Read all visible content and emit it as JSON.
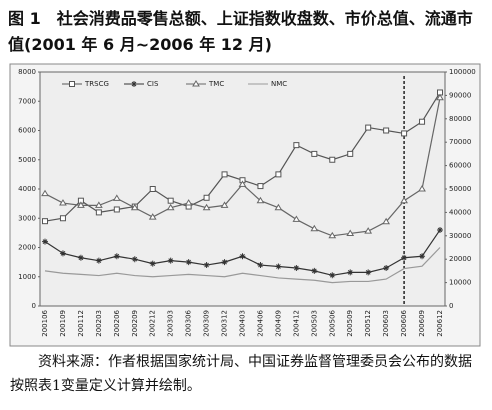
{
  "chart_data": {
    "type": "line",
    "title": "图 1　社会消费品零售总额、上证指数收盘数、市价总值、流通市值(2001 年 6 月~2006 年 12 月)",
    "caption": "资料来源：作者根据国家统计局、中国证券监督管理委员会公布的数据按照表1变量定义计算并绘制。",
    "categories": [
      "200106",
      "200109",
      "200112",
      "200203",
      "200206",
      "200209",
      "200212",
      "200303",
      "200306",
      "200309",
      "200312",
      "200403",
      "200406",
      "200409",
      "200412",
      "200503",
      "200506",
      "200509",
      "200512",
      "200603",
      "200606",
      "200609",
      "200612"
    ],
    "series": [
      {
        "name": "TRSCG",
        "color": "#555",
        "marker": "square",
        "axis": "y",
        "values": [
          2900,
          3000,
          3600,
          3200,
          3300,
          3400,
          4000,
          3600,
          3400,
          3700,
          4500,
          4300,
          4100,
          4500,
          5500,
          5200,
          5000,
          5200,
          6100,
          6000,
          5900,
          6300,
          7300
        ]
      },
      {
        "name": "CIS",
        "color": "#333",
        "marker": "star",
        "axis": "y",
        "values": [
          2200,
          1800,
          1650,
          1550,
          1700,
          1600,
          1450,
          1550,
          1500,
          1400,
          1500,
          1700,
          1400,
          1350,
          1300,
          1200,
          1050,
          1150,
          1150,
          1300,
          1650,
          1700,
          2600
        ]
      },
      {
        "name": "TMC",
        "color": "#666",
        "marker": "triangle",
        "axis": "y2",
        "values": [
          48000,
          44000,
          43000,
          43000,
          46000,
          42000,
          38000,
          42000,
          44000,
          42000,
          43000,
          52000,
          45000,
          42000,
          37000,
          33000,
          30000,
          31000,
          32000,
          36000,
          45000,
          50000,
          89000
        ]
      },
      {
        "name": "NMC",
        "color": "#999",
        "marker": "none",
        "axis": "y2",
        "values": [
          15000,
          14000,
          13500,
          13000,
          14000,
          13000,
          12500,
          13000,
          13500,
          13000,
          12500,
          14000,
          13000,
          12000,
          11500,
          11000,
          10000,
          10500,
          10500,
          11500,
          16000,
          17000,
          25000
        ]
      }
    ],
    "ylim": [
      0,
      8000
    ],
    "yticks": [
      0,
      1000,
      2000,
      3000,
      4000,
      5000,
      6000,
      7000,
      8000
    ],
    "y2lim": [
      0,
      100000
    ],
    "y2ticks": [
      0,
      10000,
      20000,
      30000,
      40000,
      50000,
      60000,
      70000,
      80000,
      90000,
      100000
    ],
    "legend": "top"
  }
}
